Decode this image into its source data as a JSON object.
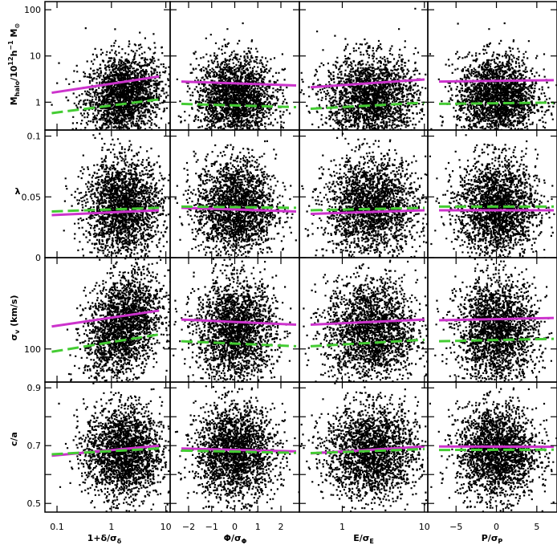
{
  "chart_data": {
    "type": "scatter",
    "grid": false,
    "layout": "4x4 panel grid",
    "point_color": "#000000",
    "colors": {
      "median_line": "#cc33cc",
      "dashed_line": "#44cc33"
    },
    "columns": [
      {
        "xlabel": "1+δ/σ_δ",
        "xscale": "log",
        "xlim": [
          0.06,
          12
        ],
        "ticks": [
          0.1,
          1,
          10
        ],
        "tick_labels": [
          "0.1",
          "1",
          "10"
        ]
      },
      {
        "xlabel": "Φ/σ_Φ",
        "xscale": "linear",
        "xlim": [
          -2.8,
          2.8
        ],
        "ticks": [
          -2,
          -1,
          0,
          1,
          2
        ],
        "tick_labels": [
          "−2",
          "−1",
          "0",
          "1",
          "2"
        ]
      },
      {
        "xlabel": "E/σ_E",
        "xscale": "log",
        "xlim": [
          0.3,
          11
        ],
        "ticks": [
          1,
          10
        ],
        "tick_labels": [
          "1",
          "10"
        ]
      },
      {
        "xlabel": "P/σ_P",
        "xscale": "linear",
        "xlim": [
          -8.5,
          7.5
        ],
        "ticks": [
          -5,
          0,
          5
        ],
        "tick_labels": [
          "−5",
          "0",
          "5"
        ]
      }
    ],
    "rows": [
      {
        "ylabel": "M_halo / 10^12 h^-1 M_⊙",
        "yscale": "log",
        "ylim": [
          0.25,
          150
        ],
        "ticks": [
          1,
          10,
          100
        ],
        "tick_labels": [
          "1",
          "10",
          "100"
        ],
        "cloud_center": 1.3,
        "cloud_spread": 0.45,
        "lines": [
          [
            {
              "start": 1.6,
              "end": 3.6,
              "solid": 1
            },
            {
              "start": 0.58,
              "end": 1.15
            }
          ],
          [
            {
              "start": 2.8,
              "end": 2.3
            },
            {
              "start": 0.92,
              "end": 0.78
            }
          ],
          [
            {
              "start": 2.1,
              "end": 3.1
            },
            {
              "start": 0.72,
              "end": 0.98
            }
          ],
          [
            {
              "start": 2.8,
              "end": 3.0
            },
            {
              "start": 0.92,
              "end": 0.98
            }
          ]
        ]
      },
      {
        "ylabel": "λ",
        "yscale": "linear",
        "ylim": [
          0,
          0.105
        ],
        "ticks": [
          0,
          0.05,
          0.1
        ],
        "tick_labels": [
          "0",
          "0.05",
          "0.1"
        ],
        "cloud_center": 0.042,
        "cloud_spread": 0.02,
        "lines": [
          [
            {
              "start": 0.035,
              "end": 0.039
            },
            {
              "start": 0.038,
              "end": 0.041
            }
          ],
          [
            {
              "start": 0.041,
              "end": 0.038
            },
            {
              "start": 0.042,
              "end": 0.041
            }
          ],
          [
            {
              "start": 0.036,
              "end": 0.039
            },
            {
              "start": 0.039,
              "end": 0.041
            }
          ],
          [
            {
              "start": 0.039,
              "end": 0.039
            },
            {
              "start": 0.042,
              "end": 0.042
            }
          ]
        ]
      },
      {
        "ylabel": "σ_v (km/s)",
        "yscale": "log",
        "ylim": [
          55,
          520
        ],
        "ticks": [
          100
        ],
        "tick_labels": [
          "100"
        ],
        "cloud_center": 140,
        "cloud_spread": 0.2,
        "lines": [
          [
            {
              "start": 150,
              "end": 200
            },
            {
              "start": 95,
              "end": 130
            }
          ],
          [
            {
              "start": 170,
              "end": 155
            },
            {
              "start": 115,
              "end": 105
            }
          ],
          [
            {
              "start": 155,
              "end": 170
            },
            {
              "start": 105,
              "end": 118
            }
          ],
          [
            {
              "start": 168,
              "end": 175
            },
            {
              "start": 115,
              "end": 120
            }
          ]
        ]
      },
      {
        "ylabel": "c/a",
        "yscale": "linear",
        "ylim": [
          0.47,
          0.92
        ],
        "ticks": [
          0.5,
          0.6,
          0.7,
          0.8,
          0.9
        ],
        "tick_labels": [
          "0.5",
          "",
          "0.7",
          "",
          "0.9"
        ],
        "cloud_center": 0.68,
        "cloud_spread": 0.08,
        "lines": [
          [
            {
              "start": 0.665,
              "end": 0.7
            },
            {
              "start": 0.67,
              "end": 0.69
            }
          ],
          [
            {
              "start": 0.69,
              "end": 0.68
            },
            {
              "start": 0.683,
              "end": 0.675
            }
          ],
          [
            {
              "start": 0.673,
              "end": 0.697
            },
            {
              "start": 0.674,
              "end": 0.688
            }
          ],
          [
            {
              "start": 0.697,
              "end": 0.696
            },
            {
              "start": 0.685,
              "end": 0.686
            }
          ]
        ]
      }
    ]
  },
  "labels": {
    "y": [
      "M_halo/10^12 h^-1 M_⊙",
      "λ",
      "σ_v (km/s)",
      "c/a"
    ],
    "x": [
      "1+δ/σ_δ",
      "Φ/σ_Φ",
      "E/σ_E",
      "P/σ_P"
    ]
  }
}
